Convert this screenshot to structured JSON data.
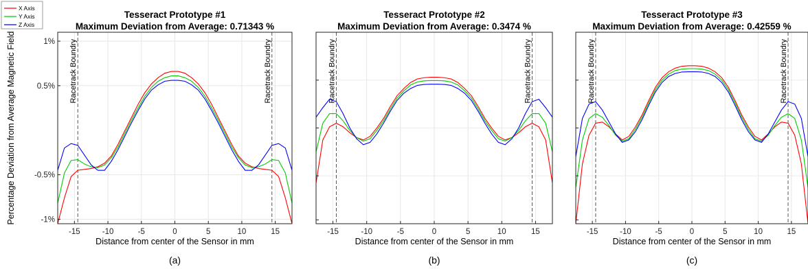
{
  "chart_data": [
    {
      "type": "line",
      "title": "Tesseract Prototype #1",
      "subtitle": "Maximum Deviation from Average: 0.71343 %",
      "xlabel": "Distance from center of the Sensor in mm",
      "ylabel": "Percentage Deviation from Average Magnetic Field",
      "sublabel": "(a)",
      "xlim": [
        -17.5,
        17.5
      ],
      "ylim": [
        -1.05,
        1.1
      ],
      "xticks": [
        -15,
        -10,
        -5,
        0,
        5,
        10,
        15
      ],
      "yticks": [
        -1,
        -0.5,
        0.5,
        1
      ],
      "yticklabels": [
        "-1%",
        "-0.5%",
        "0.5%",
        "1%"
      ],
      "grid": true,
      "legend": {
        "entries": [
          "X Axis",
          "Y Axis",
          "Z Axis"
        ],
        "placement": "top-left",
        "colors": [
          "#ff0000",
          "#00cc00",
          "#0000ff"
        ]
      },
      "annotations": [
        {
          "label": "Racetrack Boundry",
          "x": -14.5
        },
        {
          "label": "Racetrack Boundry",
          "x": 14.5
        }
      ],
      "x": [
        -17.5,
        -16.5,
        -15.5,
        -14.5,
        -13.5,
        -12.5,
        -11.5,
        -10.5,
        -9.5,
        -8.5,
        -7.5,
        -6.5,
        -5.5,
        -4.5,
        -3.5,
        -2.5,
        -1.5,
        -0.5,
        0.5,
        1.5,
        2.5,
        3.5,
        4.5,
        5.5,
        6.5,
        7.5,
        8.5,
        9.5,
        10.5,
        11.5,
        12.5,
        13.5,
        14.5,
        15.5,
        16.5,
        17.5
      ],
      "series": [
        {
          "name": "X Axis",
          "color": "#ff0000",
          "values": [
            -1.05,
            -0.76,
            -0.52,
            -0.45,
            -0.44,
            -0.43,
            -0.41,
            -0.37,
            -0.29,
            -0.16,
            -0.01,
            0.14,
            0.29,
            0.42,
            0.52,
            0.59,
            0.64,
            0.66,
            0.66,
            0.64,
            0.59,
            0.52,
            0.42,
            0.29,
            0.14,
            -0.01,
            -0.16,
            -0.29,
            -0.37,
            -0.41,
            -0.43,
            -0.44,
            -0.45,
            -0.52,
            -0.76,
            -1.05
          ]
        },
        {
          "name": "Y Axis",
          "color": "#00cc00",
          "values": [
            -0.82,
            -0.48,
            -0.34,
            -0.33,
            -0.38,
            -0.41,
            -0.42,
            -0.39,
            -0.31,
            -0.19,
            -0.04,
            0.11,
            0.25,
            0.38,
            0.48,
            0.55,
            0.59,
            0.61,
            0.61,
            0.59,
            0.55,
            0.48,
            0.38,
            0.25,
            0.11,
            -0.04,
            -0.19,
            -0.31,
            -0.39,
            -0.42,
            -0.41,
            -0.38,
            -0.33,
            -0.34,
            -0.48,
            -0.82
          ]
        },
        {
          "name": "Z Axis",
          "color": "#0000ff",
          "values": [
            -0.45,
            -0.2,
            -0.15,
            -0.17,
            -0.28,
            -0.39,
            -0.45,
            -0.45,
            -0.35,
            -0.22,
            -0.07,
            0.08,
            0.22,
            0.35,
            0.45,
            0.51,
            0.55,
            0.56,
            0.56,
            0.55,
            0.51,
            0.45,
            0.35,
            0.22,
            0.08,
            -0.07,
            -0.22,
            -0.35,
            -0.45,
            -0.45,
            -0.39,
            -0.28,
            -0.17,
            -0.15,
            -0.2,
            -0.45
          ]
        }
      ]
    },
    {
      "type": "line",
      "title": "Tesseract Prototype #2",
      "subtitle": "Maximum Deviation from Average: 0.3474 %",
      "xlabel": "Distance from center of the Sensor in mm",
      "ylabel": "",
      "sublabel": "(b)",
      "xlim": [
        -17.5,
        17.5
      ],
      "ylim": [
        -0.4,
        0.4
      ],
      "xticks": [
        -15,
        -10,
        -5,
        0,
        5,
        10,
        15
      ],
      "yticks": [],
      "grid": true,
      "annotations": [
        {
          "label": "Racetrack Boundry",
          "x": -14.5
        },
        {
          "label": "Racetrack Boundry",
          "x": 14.5
        }
      ],
      "x": [
        -17.5,
        -16.5,
        -15.5,
        -14.5,
        -13.5,
        -12.5,
        -11.5,
        -10.5,
        -9.5,
        -8.5,
        -7.5,
        -6.5,
        -5.5,
        -4.5,
        -3.5,
        -2.5,
        -1.5,
        -0.5,
        0.5,
        1.5,
        2.5,
        3.5,
        4.5,
        5.5,
        6.5,
        7.5,
        8.5,
        9.5,
        10.5,
        11.5,
        12.5,
        13.5,
        14.5,
        15.5,
        16.5,
        17.5
      ],
      "series": [
        {
          "name": "X Axis",
          "color": "#ff0000",
          "values": [
            -0.23,
            -0.05,
            0.005,
            0.02,
            0.005,
            -0.02,
            -0.04,
            -0.05,
            -0.035,
            0.0,
            0.04,
            0.09,
            0.135,
            0.165,
            0.19,
            0.205,
            0.21,
            0.212,
            0.212,
            0.21,
            0.205,
            0.19,
            0.165,
            0.135,
            0.09,
            0.04,
            0.0,
            -0.035,
            -0.05,
            -0.04,
            -0.02,
            0.005,
            0.02,
            0.005,
            -0.05,
            -0.23
          ]
        },
        {
          "name": "Y Axis",
          "color": "#00cc00",
          "values": [
            -0.1,
            0.02,
            0.06,
            0.06,
            0.03,
            -0.01,
            -0.04,
            -0.055,
            -0.045,
            -0.01,
            0.03,
            0.08,
            0.125,
            0.155,
            0.18,
            0.192,
            0.197,
            0.198,
            0.198,
            0.197,
            0.192,
            0.18,
            0.155,
            0.125,
            0.08,
            0.03,
            -0.01,
            -0.045,
            -0.055,
            -0.04,
            -0.01,
            0.03,
            0.06,
            0.06,
            0.02,
            -0.1
          ]
        },
        {
          "name": "Z Axis",
          "color": "#0000ff",
          "values": [
            0.045,
            0.085,
            0.12,
            0.11,
            0.06,
            0.0,
            -0.045,
            -0.07,
            -0.06,
            -0.025,
            0.02,
            0.07,
            0.115,
            0.145,
            0.165,
            0.178,
            0.182,
            0.183,
            0.183,
            0.182,
            0.178,
            0.165,
            0.145,
            0.115,
            0.07,
            0.02,
            -0.025,
            -0.06,
            -0.07,
            -0.045,
            0.0,
            0.06,
            0.11,
            0.12,
            0.085,
            0.045
          ]
        }
      ]
    },
    {
      "type": "line",
      "title": "Tesseract Prototype #3",
      "subtitle": "Maximum Deviation from Average: 0.42559 %",
      "xlabel": "Distance from center of the Sensor in mm",
      "ylabel": "",
      "sublabel": "(c)",
      "xlim": [
        -17.5,
        17.5
      ],
      "ylim": [
        -0.4,
        0.4
      ],
      "xticks": [
        -15,
        -10,
        -5,
        0,
        5,
        10,
        15
      ],
      "yticks": [],
      "grid": true,
      "annotations": [
        {
          "label": "Racetrack Boundry",
          "x": -14.5
        },
        {
          "label": "Racetrack Boundry",
          "x": 14.5
        }
      ],
      "x": [
        -17.5,
        -16.5,
        -15.5,
        -14.5,
        -13.5,
        -12.5,
        -11.5,
        -10.5,
        -9.5,
        -8.5,
        -7.5,
        -6.5,
        -5.5,
        -4.5,
        -3.5,
        -2.5,
        -1.5,
        -0.5,
        0.5,
        1.5,
        2.5,
        3.5,
        4.5,
        5.5,
        6.5,
        7.5,
        8.5,
        9.5,
        10.5,
        11.5,
        12.5,
        13.5,
        14.5,
        15.5,
        16.5,
        17.5
      ],
      "series": [
        {
          "name": "X Axis",
          "color": "#ff0000",
          "values": [
            -0.4,
            -0.15,
            -0.03,
            0.02,
            0.025,
            0.005,
            -0.025,
            -0.05,
            -0.035,
            0.005,
            0.055,
            0.115,
            0.17,
            0.21,
            0.235,
            0.25,
            0.258,
            0.26,
            0.26,
            0.258,
            0.25,
            0.235,
            0.21,
            0.17,
            0.115,
            0.055,
            0.005,
            -0.035,
            -0.05,
            -0.025,
            0.005,
            0.025,
            0.02,
            -0.03,
            -0.15,
            -0.4
          ]
        },
        {
          "name": "Y Axis",
          "color": "#00cc00",
          "values": [
            -0.25,
            -0.05,
            0.04,
            0.06,
            0.045,
            0.01,
            -0.03,
            -0.055,
            -0.045,
            -0.005,
            0.045,
            0.105,
            0.16,
            0.2,
            0.225,
            0.24,
            0.246,
            0.248,
            0.248,
            0.246,
            0.24,
            0.225,
            0.2,
            0.16,
            0.105,
            0.045,
            -0.005,
            -0.045,
            -0.055,
            -0.03,
            0.01,
            0.045,
            0.06,
            0.04,
            -0.05,
            -0.25
          ]
        },
        {
          "name": "Z Axis",
          "color": "#0000ff",
          "values": [
            -0.12,
            0.04,
            0.1,
            0.11,
            0.075,
            0.025,
            -0.025,
            -0.06,
            -0.05,
            -0.015,
            0.035,
            0.095,
            0.15,
            0.19,
            0.215,
            0.228,
            0.234,
            0.235,
            0.235,
            0.234,
            0.228,
            0.215,
            0.19,
            0.15,
            0.095,
            0.035,
            -0.015,
            -0.05,
            -0.06,
            -0.025,
            0.025,
            0.075,
            0.11,
            0.1,
            0.04,
            -0.12
          ]
        }
      ]
    }
  ]
}
